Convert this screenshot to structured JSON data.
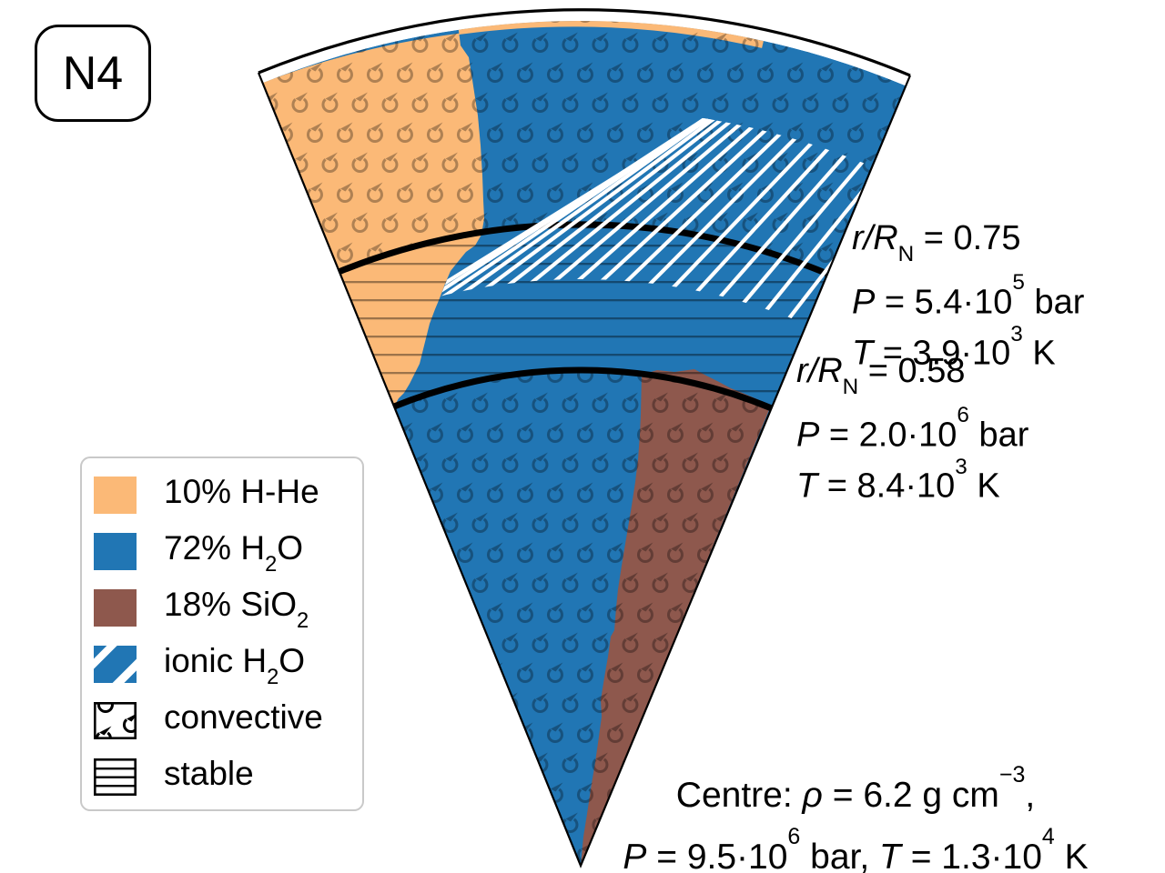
{
  "panel": {
    "label": "N4"
  },
  "colors": {
    "hhe_orange": "#FBB977",
    "water_blue": "#2176B4",
    "rock_brown": "#8E584D",
    "boundary_black": "#000000",
    "hatch_white": "#FFFFFF"
  },
  "legend": {
    "items": [
      {
        "id": "hhe",
        "pre": "10% H-He",
        "sub": "",
        "post": ""
      },
      {
        "id": "h2o",
        "pre": "72% H",
        "sub": "2",
        "post": "O"
      },
      {
        "id": "sio2",
        "pre": "18% SiO",
        "sub": "2",
        "post": ""
      },
      {
        "id": "ionic",
        "pre": "ionic H",
        "sub": "2",
        "post": "O"
      },
      {
        "id": "convective",
        "pre": "convective",
        "sub": "",
        "post": ""
      },
      {
        "id": "stable",
        "pre": "stable",
        "sub": "",
        "post": ""
      }
    ]
  },
  "annotations": {
    "upper": {
      "l1": {
        "a": "r/R",
        "sub": "N",
        "d": " = 0.75"
      },
      "l2": {
        "a": "P",
        "b": " = 5.4·10",
        "sup": "5",
        "c": " bar"
      },
      "l3": {
        "a": "T",
        "b": " = 3.9·10",
        "sup": "3",
        "c": " K"
      }
    },
    "lower": {
      "l1": {
        "a": "r/R",
        "sub": "N",
        "d": " = 0.58"
      },
      "l2": {
        "a": "P",
        "b": " = 2.0·10",
        "sup": "6",
        "c": " bar"
      },
      "l3": {
        "a": "T",
        "b": " = 8.4·10",
        "sup": "3",
        "c": " K"
      }
    },
    "centre": {
      "l1": {
        "a": "Centre: ",
        "b": "ρ",
        "c": " = 6.2 g cm",
        "sup": "−3",
        "d": ","
      },
      "l2": {
        "a": "P",
        "b": " = 9.5·10",
        "sup1": "6",
        "c": " bar, ",
        "d": "T",
        "e": " = 1.3·10",
        "sup2": "4",
        "f": " K"
      }
    }
  }
}
